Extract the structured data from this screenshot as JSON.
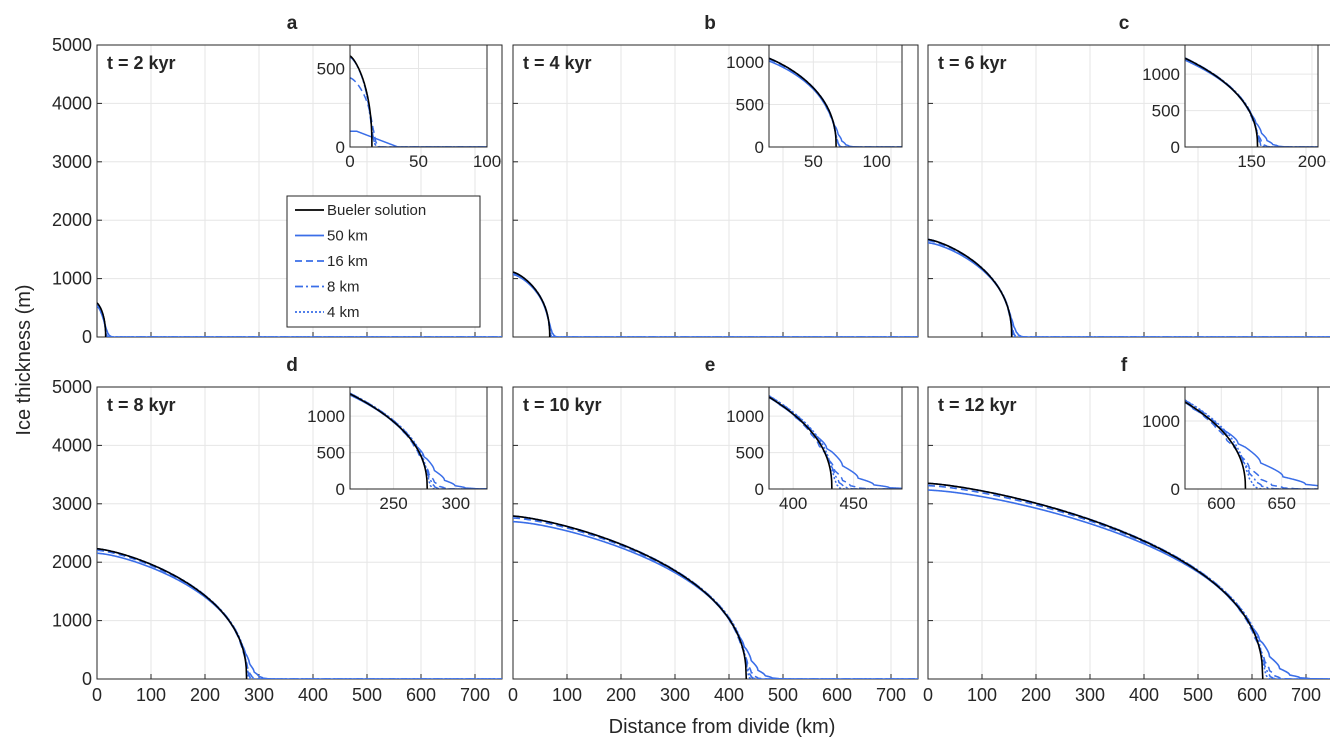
{
  "figure": {
    "ylabel": "Ice thickness (m)",
    "xlabel": "Distance from divide (km)"
  },
  "legend": {
    "entries": [
      {
        "label": "Bueler solution",
        "color": "#000000",
        "dash": "solid"
      },
      {
        "label": "50 km",
        "color": "#3a6ee8",
        "dash": "solid"
      },
      {
        "label": "16 km",
        "color": "#3a6ee8",
        "dash": "dashed"
      },
      {
        "label": "8 km",
        "color": "#3a6ee8",
        "dash": "dashdot"
      },
      {
        "label": "4 km",
        "color": "#3a6ee8",
        "dash": "dotted"
      }
    ]
  },
  "chart_data": [
    {
      "type": "line",
      "panel": "a",
      "time_label": "t = 2 kyr",
      "xlim": [
        0,
        750
      ],
      "ylim": [
        0,
        5000
      ],
      "xticks": [],
      "yticks": [
        0,
        1000,
        2000,
        3000,
        4000,
        5000
      ],
      "margin_km": 16,
      "H0": 580,
      "inset": {
        "xlim": [
          0,
          100
        ],
        "ylim": [
          0,
          650
        ],
        "xticks": [
          0,
          50,
          100
        ],
        "yticks": [
          0,
          500
        ]
      }
    },
    {
      "type": "line",
      "panel": "b",
      "time_label": "t = 4 kyr",
      "xlim": [
        0,
        750
      ],
      "ylim": [
        0,
        5000
      ],
      "xticks": [],
      "yticks": [],
      "margin_km": 68,
      "H0": 1110,
      "inset": {
        "xlim": [
          15,
          120
        ],
        "ylim": [
          0,
          1200
        ],
        "xticks": [
          50,
          100
        ],
        "yticks": [
          0,
          500,
          1000
        ]
      }
    },
    {
      "type": "line",
      "panel": "c",
      "time_label": "t = 6 kyr",
      "xlim": [
        0,
        750
      ],
      "ylim": [
        0,
        5000
      ],
      "xticks": [],
      "yticks": [],
      "margin_km": 155,
      "H0": 1670,
      "inset": {
        "xlim": [
          95,
          205
        ],
        "ylim": [
          0,
          1400
        ],
        "xticks": [
          150,
          200
        ],
        "yticks": [
          0,
          500,
          1000
        ]
      }
    },
    {
      "type": "line",
      "panel": "d",
      "time_label": "t = 8 kyr",
      "xlim": [
        0,
        750
      ],
      "ylim": [
        0,
        5000
      ],
      "xticks": [
        0,
        100,
        200,
        300,
        400,
        500,
        600,
        700
      ],
      "yticks": [
        0,
        1000,
        2000,
        3000,
        4000,
        5000
      ],
      "margin_km": 277,
      "H0": 2230,
      "inset": {
        "xlim": [
          215,
          325
        ],
        "ylim": [
          0,
          1400
        ],
        "xticks": [
          250,
          300
        ],
        "yticks": [
          0,
          500,
          1000
        ]
      }
    },
    {
      "type": "line",
      "panel": "e",
      "time_label": "t = 10 kyr",
      "xlim": [
        0,
        750
      ],
      "ylim": [
        0,
        5000
      ],
      "xticks": [
        0,
        100,
        200,
        300,
        400,
        500,
        600,
        700
      ],
      "yticks": [],
      "margin_km": 432,
      "H0": 2790,
      "inset": {
        "xlim": [
          380,
          490
        ],
        "ylim": [
          0,
          1400
        ],
        "xticks": [
          400,
          450
        ],
        "yticks": [
          0,
          500,
          1000
        ]
      }
    },
    {
      "type": "line",
      "panel": "f",
      "time_label": "t = 12 kyr",
      "xlim": [
        0,
        750
      ],
      "ylim": [
        0,
        5000
      ],
      "xticks": [
        0,
        100,
        200,
        300,
        400,
        500,
        600,
        700
      ],
      "yticks": [],
      "margin_km": 620,
      "H0": 3350,
      "inset": {
        "xlim": [
          570,
          680
        ],
        "ylim": [
          0,
          1500
        ],
        "xticks": [
          600,
          650
        ],
        "yticks": [
          0,
          1000
        ]
      }
    }
  ]
}
